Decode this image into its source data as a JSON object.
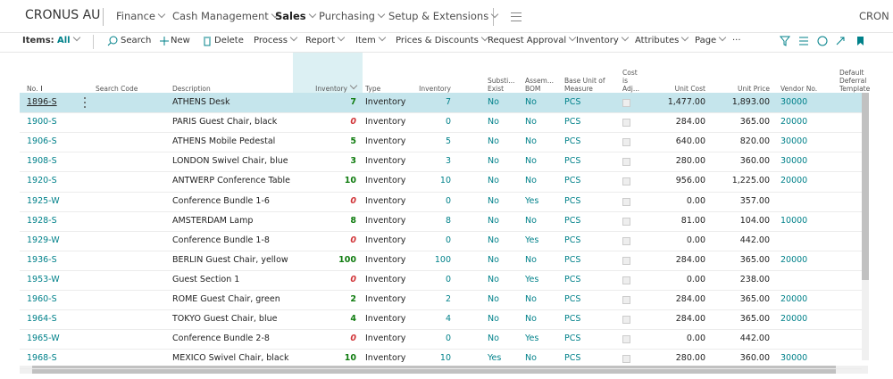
{
  "nav": {
    "company": "CRONUS AU",
    "menu": [
      "Finance",
      "Cash Management",
      "Sales",
      "Purchasing",
      "Setup & Extensions"
    ],
    "right": "CRON"
  },
  "actions": {
    "label": "Items:",
    "view": "All",
    "items": [
      "Search",
      "New",
      "Delete",
      "Process",
      "Report",
      "Item",
      "Prices & Discounts",
      "Request Approval",
      "Inventory",
      "Attributes",
      "Page"
    ],
    "more": "···"
  },
  "table": {
    "columns": [
      {
        "lines": [
          "No."
        ]
      },
      {
        "lines": [
          "Search Code"
        ]
      },
      {
        "lines": [
          "Description"
        ]
      },
      {
        "lines": [
          "Inventory"
        ]
      },
      {
        "lines": [
          "Type"
        ]
      },
      {
        "lines": [
          "Inventory"
        ]
      },
      {
        "lines": [
          "Substi...",
          "Exist"
        ]
      },
      {
        "lines": [
          "Assem...",
          "BOM"
        ]
      },
      {
        "lines": [
          "Base Unit of",
          "Measure"
        ]
      },
      {
        "lines": [
          "Cost",
          "is",
          "Adj..."
        ]
      },
      {
        "lines": [
          "Unit Cost"
        ]
      },
      {
        "lines": [
          "Unit Price"
        ]
      },
      {
        "lines": [
          "Vendor No."
        ]
      },
      {
        "lines": [
          "Default",
          "Deferral",
          "Template"
        ]
      }
    ],
    "rows": [
      {
        "no": "1896-S",
        "description": "ATHENS Desk",
        "inventory": 7,
        "type": "Inventory",
        "inventory_2": 7,
        "substitutes_exist": "No",
        "assembly_bom": "No",
        "base_unit": "PCS",
        "unit_cost": "1,477.00",
        "unit_price": "1,893.00",
        "vendor_no": "30000"
      },
      {
        "no": "1900-S",
        "description": "PARIS Guest Chair, black",
        "inventory": 0,
        "type": "Inventory",
        "inventory_2": 0,
        "substitutes_exist": "No",
        "assembly_bom": "No",
        "base_unit": "PCS",
        "unit_cost": "284.00",
        "unit_price": "365.00",
        "vendor_no": "20000"
      },
      {
        "no": "1906-S",
        "description": "ATHENS Mobile Pedestal",
        "inventory": 5,
        "type": "Inventory",
        "inventory_2": 5,
        "substitutes_exist": "No",
        "assembly_bom": "No",
        "base_unit": "PCS",
        "unit_cost": "640.00",
        "unit_price": "820.00",
        "vendor_no": "30000"
      },
      {
        "no": "1908-S",
        "description": "LONDON Swivel Chair, blue",
        "inventory": 3,
        "type": "Inventory",
        "inventory_2": 3,
        "substitutes_exist": "No",
        "assembly_bom": "No",
        "base_unit": "PCS",
        "unit_cost": "280.00",
        "unit_price": "360.00",
        "vendor_no": "30000"
      },
      {
        "no": "1920-S",
        "description": "ANTWERP Conference Table",
        "inventory": 10,
        "type": "Inventory",
        "inventory_2": 10,
        "substitutes_exist": "No",
        "assembly_bom": "No",
        "base_unit": "PCS",
        "unit_cost": "956.00",
        "unit_price": "1,225.00",
        "vendor_no": "20000"
      },
      {
        "no": "1925-W",
        "description": "Conference Bundle 1-6",
        "inventory": 0,
        "type": "Inventory",
        "inventory_2": 0,
        "substitutes_exist": "No",
        "assembly_bom": "Yes",
        "base_unit": "PCS",
        "unit_cost": "0.00",
        "unit_price": "357.00"
      },
      {
        "no": "1928-S",
        "description": "AMSTERDAM Lamp",
        "inventory": 8,
        "type": "Inventory",
        "inventory_2": 8,
        "substitutes_exist": "No",
        "assembly_bom": "No",
        "base_unit": "PCS",
        "unit_cost": "81.00",
        "unit_price": "104.00",
        "vendor_no": "10000"
      },
      {
        "no": "1929-W",
        "description": "Conference Bundle 1-8",
        "inventory": 0,
        "type": "Inventory",
        "inventory_2": 0,
        "substitutes_exist": "No",
        "assembly_bom": "Yes",
        "base_unit": "PCS",
        "unit_cost": "0.00",
        "unit_price": "442.00"
      },
      {
        "no": "1936-S",
        "description": "BERLIN Guest Chair, yellow",
        "inventory": 100,
        "type": "Inventory",
        "inventory_2": 100,
        "substitutes_exist": "No",
        "assembly_bom": "No",
        "base_unit": "PCS",
        "unit_cost": "284.00",
        "unit_price": "365.00",
        "vendor_no": "20000"
      },
      {
        "no": "1953-W",
        "description": "Guest Section 1",
        "inventory": 0,
        "type": "Inventory",
        "inventory_2": 0,
        "substitutes_exist": "No",
        "assembly_bom": "Yes",
        "base_unit": "PCS",
        "unit_cost": "0.00",
        "unit_price": "238.00"
      },
      {
        "no": "1960-S",
        "description": "ROME Guest Chair, green",
        "inventory": 2,
        "type": "Inventory",
        "inventory_2": 2,
        "substitutes_exist": "No",
        "assembly_bom": "No",
        "base_unit": "PCS",
        "unit_cost": "284.00",
        "unit_price": "365.00",
        "vendor_no": "20000"
      },
      {
        "no": "1964-S",
        "description": "TOKYO Guest Chair, blue",
        "inventory": 4,
        "type": "Inventory",
        "inventory_2": 4,
        "substitutes_exist": "No",
        "assembly_bom": "No",
        "base_unit": "PCS",
        "unit_cost": "284.00",
        "unit_price": "365.00",
        "vendor_no": "20000"
      },
      {
        "no": "1965-W",
        "description": "Conference Bundle 2-8",
        "inventory": 0,
        "type": "Inventory",
        "inventory_2": 0,
        "substitutes_exist": "No",
        "assembly_bom": "Yes",
        "base_unit": "PCS",
        "unit_cost": "0.00",
        "unit_price": "442.00"
      },
      {
        "no": "1968-S",
        "description": "MEXICO Swivel Chair, black",
        "inventory": 10,
        "type": "Inventory",
        "inventory_2": 10,
        "substitutes_exist": "Yes",
        "assembly_bom": "No",
        "base_unit": "PCS",
        "unit_cost": "280.00",
        "unit_price": "360.00",
        "vendor_no": "30000"
      }
    ]
  }
}
